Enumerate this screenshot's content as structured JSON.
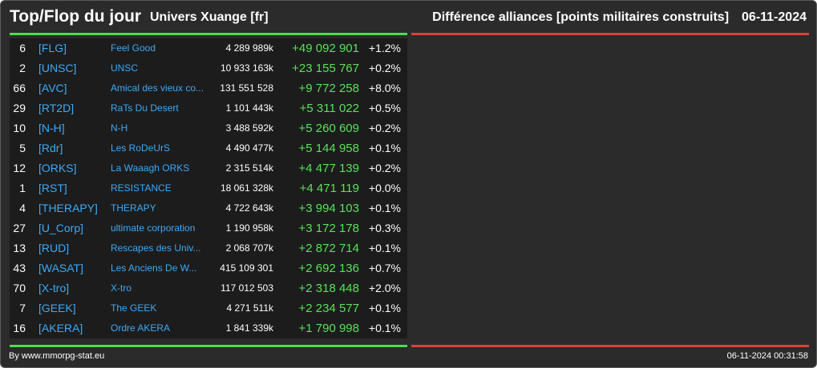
{
  "header": {
    "title": "Top/Flop du jour",
    "subtitle": "Univers Xuange [fr]",
    "metric": "Différence alliances [points militaires construits]",
    "date": "06-11-2024"
  },
  "colors": {
    "gain_bar": "#48e048",
    "loss_bar": "#d9413a",
    "tag_link": "#3fa9f5",
    "gain_value": "#5ae05a"
  },
  "rows": [
    {
      "rank": "6",
      "tag": "[FLG]",
      "name": "Feel Good",
      "points": "4 289 989k",
      "diff": "+49 092 901",
      "pct": "+1.2%"
    },
    {
      "rank": "2",
      "tag": "[UNSC]",
      "name": "UNSC",
      "points": "10 933 163k",
      "diff": "+23 155 767",
      "pct": "+0.2%"
    },
    {
      "rank": "66",
      "tag": "[AVC]",
      "name": "Amical des vieux co...",
      "points": "131 551 528",
      "diff": "+9 772 258",
      "pct": "+8.0%"
    },
    {
      "rank": "29",
      "tag": "[RT2D]",
      "name": "RaTs Du Desert",
      "points": "1 101 443k",
      "diff": "+5 311 022",
      "pct": "+0.5%"
    },
    {
      "rank": "10",
      "tag": "[N-H]",
      "name": "N-H",
      "points": "3 488 592k",
      "diff": "+5 260 609",
      "pct": "+0.2%"
    },
    {
      "rank": "5",
      "tag": "[Rdr]",
      "name": "Les RoDeUrS",
      "points": "4 490 477k",
      "diff": "+5 144 958",
      "pct": "+0.1%"
    },
    {
      "rank": "12",
      "tag": "[ORKS]",
      "name": "La Waaagh ORKS",
      "points": "2 315 514k",
      "diff": "+4 477 139",
      "pct": "+0.2%"
    },
    {
      "rank": "1",
      "tag": "[RST]",
      "name": "RESISTANCE",
      "points": "18 061 328k",
      "diff": "+4 471 119",
      "pct": "+0.0%"
    },
    {
      "rank": "4",
      "tag": "[THERAPY]",
      "name": "THERAPY",
      "points": "4 722 643k",
      "diff": "+3 994 103",
      "pct": "+0.1%"
    },
    {
      "rank": "27",
      "tag": "[U_Corp]",
      "name": "ultimate corporation",
      "points": "1 190 958k",
      "diff": "+3 172 178",
      "pct": "+0.3%"
    },
    {
      "rank": "13",
      "tag": "[RUD]",
      "name": "Rescapes des Univ...",
      "points": "2 068 707k",
      "diff": "+2 872 714",
      "pct": "+0.1%"
    },
    {
      "rank": "43",
      "tag": "[WASAT]",
      "name": "Les Anciens De W...",
      "points": "415 109 301",
      "diff": "+2 692 136",
      "pct": "+0.7%"
    },
    {
      "rank": "70",
      "tag": "[X-tro]",
      "name": "X-tro",
      "points": "117 012 503",
      "diff": "+2 318 448",
      "pct": "+2.0%"
    },
    {
      "rank": "7",
      "tag": "[GEEK]",
      "name": "The GEEK",
      "points": "4 271 511k",
      "diff": "+2 234 577",
      "pct": "+0.1%"
    },
    {
      "rank": "16",
      "tag": "[AKERA]",
      "name": "Ordre AKERA",
      "points": "1 841 339k",
      "diff": "+1 790 998",
      "pct": "+0.1%"
    }
  ],
  "footer": {
    "source": "By www.mmorpg-stat.eu",
    "timestamp": "06-11-2024 00:31:58"
  }
}
